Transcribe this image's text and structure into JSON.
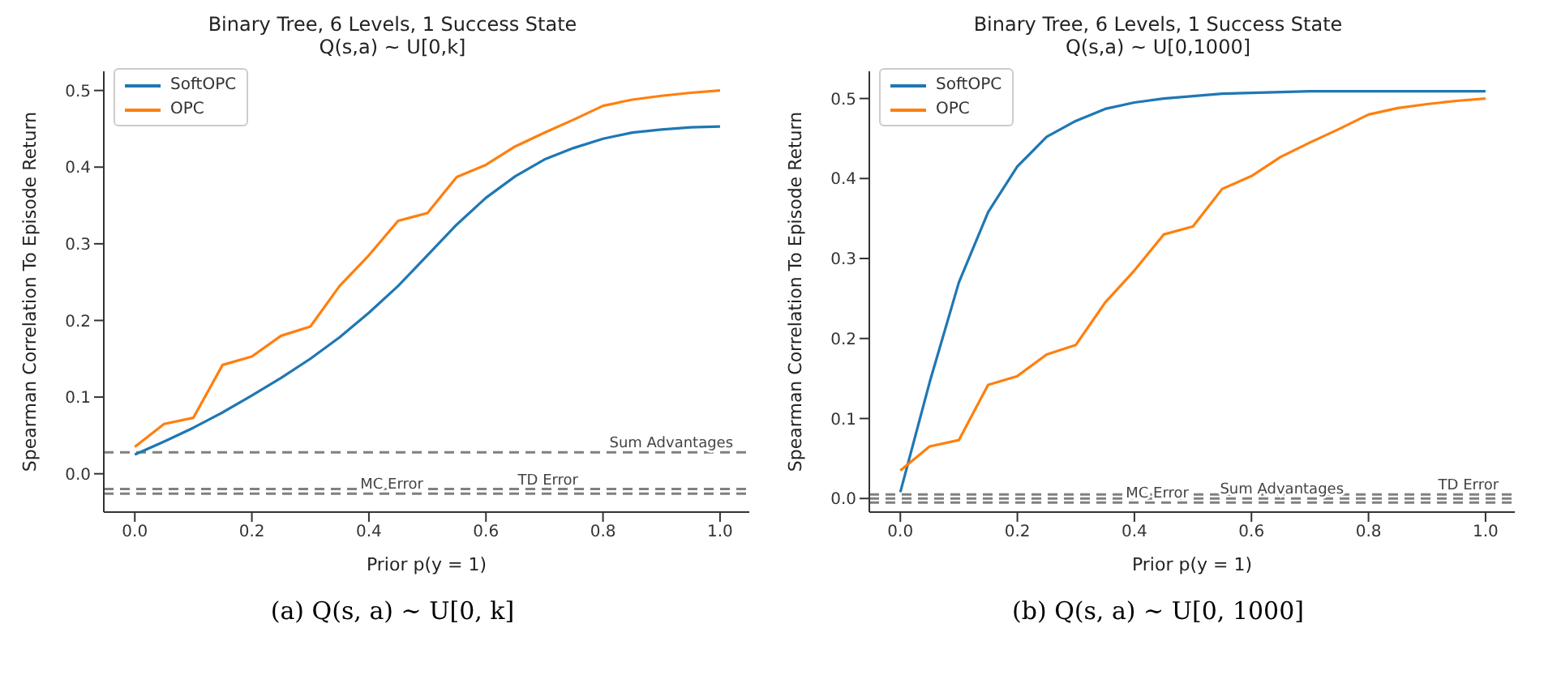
{
  "chart_data": [
    {
      "type": "line",
      "title": "Binary Tree, 6 Levels, 1 Success State",
      "subtitle": "Q(s,a) ~ U[0,k]",
      "xlabel": "Prior p(y = 1)",
      "ylabel": "Spearman Correlation To Episode Return",
      "x": [
        0,
        0.05,
        0.1,
        0.15,
        0.2,
        0.25,
        0.3,
        0.35,
        0.4,
        0.45,
        0.5,
        0.55,
        0.6,
        0.65,
        0.7,
        0.75,
        0.8,
        0.85,
        0.9,
        0.95,
        1.0
      ],
      "series": [
        {
          "name": "SoftOPC",
          "color": "#1f77b4",
          "values": [
            0.025,
            0.042,
            0.06,
            0.08,
            0.102,
            0.125,
            0.15,
            0.178,
            0.21,
            0.245,
            0.285,
            0.325,
            0.36,
            0.388,
            0.41,
            0.425,
            0.437,
            0.445,
            0.449,
            0.452,
            0.453
          ]
        },
        {
          "name": "OPC",
          "color": "#ff7f0e",
          "values": [
            0.035,
            0.065,
            0.073,
            0.142,
            0.153,
            0.18,
            0.192,
            0.245,
            0.285,
            0.33,
            0.34,
            0.387,
            0.403,
            0.427,
            0.445,
            0.462,
            0.48,
            0.488,
            0.493,
            0.497,
            0.5
          ]
        }
      ],
      "xlim": [
        -0.053,
        1.05
      ],
      "xticks": [
        {
          "value": 0,
          "label": "0.0"
        },
        {
          "value": 0.2,
          "label": "0.2"
        },
        {
          "value": 0.4,
          "label": "0.4"
        },
        {
          "value": 0.6,
          "label": "0.6"
        },
        {
          "value": 0.8,
          "label": "0.8"
        },
        {
          "value": 1.0,
          "label": "1.0"
        }
      ],
      "ylim": [
        -0.05,
        0.525
      ],
      "yticks": [
        {
          "value": 0,
          "label": "0.0"
        },
        {
          "value": 0.1,
          "label": "0.1"
        },
        {
          "value": 0.2,
          "label": "0.2"
        },
        {
          "value": 0.3,
          "label": "0.3"
        },
        {
          "value": 0.4,
          "label": "0.4"
        },
        {
          "value": 0.5,
          "label": "0.5"
        }
      ],
      "ref_lines": [
        {
          "axis": "y",
          "value": 0.028,
          "label": "Sum Advantages",
          "color": "#808080",
          "line_style": "dashed"
        },
        {
          "axis": "y",
          "value": -0.02,
          "label": "TD Error",
          "color": "#808080",
          "line_style": "dashed"
        },
        {
          "axis": "y",
          "value": -0.026,
          "label": "MC Error",
          "color": "#808080",
          "line_style": "dashed"
        }
      ],
      "legend": "top left",
      "grid": false,
      "marker": "none",
      "line_style": "solid",
      "annotations": [
        "(a) Q(s, a) ∼ U[0, k]"
      ]
    },
    {
      "type": "line",
      "title": "Binary Tree, 6 Levels, 1 Success State",
      "subtitle": "Q(s,a) ~ U[0,1000]",
      "xlabel": "Prior p(y = 1)",
      "ylabel": "Spearman Correlation To Episode Return",
      "x": [
        0,
        0.05,
        0.1,
        0.15,
        0.2,
        0.25,
        0.3,
        0.35,
        0.4,
        0.45,
        0.5,
        0.55,
        0.6,
        0.65,
        0.7,
        0.75,
        0.8,
        0.85,
        0.9,
        0.95,
        1.0
      ],
      "series": [
        {
          "name": "SoftOPC",
          "color": "#1f77b4",
          "values": [
            0.008,
            0.145,
            0.27,
            0.358,
            0.415,
            0.452,
            0.472,
            0.487,
            0.495,
            0.5,
            0.503,
            0.506,
            0.507,
            0.508,
            0.509,
            0.509,
            0.509,
            0.509,
            0.509,
            0.509,
            0.509
          ]
        },
        {
          "name": "OPC",
          "color": "#ff7f0e",
          "values": [
            0.035,
            0.065,
            0.073,
            0.142,
            0.153,
            0.18,
            0.192,
            0.245,
            0.285,
            0.33,
            0.34,
            0.387,
            0.403,
            0.427,
            0.445,
            0.462,
            0.48,
            0.488,
            0.493,
            0.497,
            0.5
          ]
        }
      ],
      "xlim": [
        -0.053,
        1.05
      ],
      "xticks": [
        {
          "value": 0,
          "label": "0.0"
        },
        {
          "value": 0.2,
          "label": "0.2"
        },
        {
          "value": 0.4,
          "label": "0.4"
        },
        {
          "value": 0.6,
          "label": "0.6"
        },
        {
          "value": 0.8,
          "label": "0.8"
        },
        {
          "value": 1.0,
          "label": "1.0"
        }
      ],
      "ylim": [
        -0.017,
        0.534
      ],
      "yticks": [
        {
          "value": 0,
          "label": "0.0"
        },
        {
          "value": 0.1,
          "label": "0.1"
        },
        {
          "value": 0.2,
          "label": "0.2"
        },
        {
          "value": 0.3,
          "label": "0.3"
        },
        {
          "value": 0.4,
          "label": "0.4"
        },
        {
          "value": 0.5,
          "label": "0.5"
        }
      ],
      "ref_lines": [
        {
          "axis": "y",
          "value": 0.005,
          "label": "TD Error",
          "color": "#808080",
          "line_style": "dashed"
        },
        {
          "axis": "y",
          "value": 0.0,
          "label": "Sum Advantages",
          "color": "#808080",
          "line_style": "dashed"
        },
        {
          "axis": "y",
          "value": -0.005,
          "label": "MC Error",
          "color": "#808080",
          "line_style": "dashed"
        }
      ],
      "legend": "top left",
      "grid": false,
      "marker": "none",
      "line_style": "solid",
      "annotations": [
        "(b) Q(s, a) ∼ U[0, 1000]"
      ]
    }
  ]
}
